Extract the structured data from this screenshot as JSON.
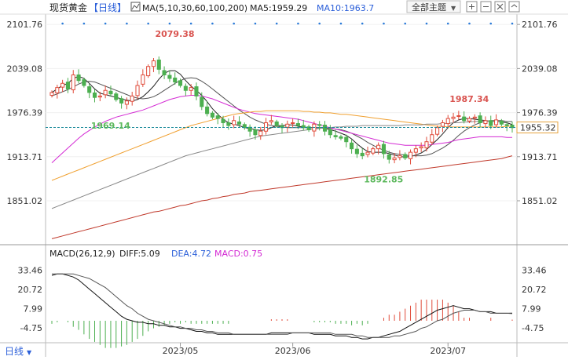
{
  "header": {
    "title": "现货黄金",
    "period": "【日线】",
    "ma_label": "MA(5,10,30,60,100,200)",
    "ma5_label": "MA5:1959.29",
    "ma10_label": "MA10:1963.7",
    "theme_button": "全部主题",
    "theme_button_arrow": "▼"
  },
  "macd_header": {
    "label": "MACD(26,12,9)",
    "diff": "DIFF:5.09",
    "dea": "DEA:4.72",
    "macd": "MACD:0.75"
  },
  "footer": {
    "period_tab": "日线"
  },
  "colors": {
    "up": "#e04b3a",
    "down": "#4caf50",
    "ma5": "#222222",
    "ma10": "#555555",
    "ma30": "#d42bd4",
    "ma60": "#f0a030",
    "ma100": "#888888",
    "ma200": "#c0392b",
    "accent_blue": "#2b5fd9",
    "price_line": "#1a8a9a",
    "label_red": "#d9534f",
    "label_green": "#5cb85c"
  },
  "chart_data": [
    {
      "type": "candlestick",
      "title": "现货黄金 日线",
      "y_ticks": [
        "2101.76",
        "2039.08",
        "1976.39",
        "1913.71",
        "1851.02"
      ],
      "ylim": [
        1793,
        2112
      ],
      "x_labels": [
        "2023/05",
        "2023/06",
        "2023/07"
      ],
      "last_price": "1955.32",
      "annotations": [
        {
          "text": "2079.38",
          "value": 2079.38,
          "kind": "high"
        },
        {
          "text": "1969.14",
          "value": 1969.14,
          "kind": "low"
        },
        {
          "text": "1892.85",
          "value": 1892.85,
          "kind": "low"
        },
        {
          "text": "1987.34",
          "value": 1987.34,
          "kind": "high"
        }
      ],
      "close": [
        2005,
        2012,
        2018,
        2010,
        2030,
        2022,
        2015,
        2005,
        1998,
        2000,
        2008,
        2003,
        1995,
        1990,
        1993,
        2000,
        2015,
        2030,
        2042,
        2050,
        2038,
        2030,
        2025,
        2020,
        2015,
        2008,
        2012,
        2000,
        1985,
        1975,
        1970,
        1968,
        1962,
        1958,
        1965,
        1960,
        1955,
        1950,
        1945,
        1950,
        1962,
        1965,
        1958,
        1955,
        1960,
        1962,
        1958,
        1955,
        1952,
        1960,
        1958,
        1950,
        1945,
        1942,
        1940,
        1935,
        1925,
        1918,
        1915,
        1920,
        1925,
        1930,
        1918,
        1910,
        1912,
        1915,
        1912,
        1920,
        1925,
        1928,
        1935,
        1945,
        1955,
        1962,
        1968,
        1970,
        1972,
        1965,
        1968,
        1970,
        1962,
        1965,
        1958,
        1966,
        1960,
        1958,
        1955
      ],
      "series": [
        {
          "name": "MA5",
          "values": [
            2005,
            2010,
            2015,
            2018,
            2025,
            2028,
            2025,
            2018,
            2010,
            2004,
            2002,
            2000,
            1998,
            1996,
            1994,
            1993,
            1995,
            1999,
            2006,
            2014,
            2024,
            2032,
            2036,
            2036,
            2031,
            2022,
            2014,
            2008,
            2001,
            1992,
            1982,
            1974,
            1967,
            1962,
            1960,
            1958,
            1955,
            1954,
            1952,
            1951,
            1952,
            1955,
            1958,
            1958,
            1959,
            1959,
            1957,
            1956,
            1955,
            1955,
            1955,
            1954,
            1952,
            1950,
            1947,
            1944,
            1939,
            1932,
            1926,
            1921,
            1920,
            1920,
            1920,
            1918,
            1916,
            1914,
            1913,
            1914,
            1916,
            1919,
            1924,
            1931,
            1938,
            1946,
            1955,
            1962,
            1966,
            1968,
            1968,
            1967,
            1966,
            1965,
            1964,
            1964,
            1963,
            1962,
            1959.29
          ]
        },
        {
          "name": "MA10",
          "values": [
            2000,
            2003,
            2006,
            2009,
            2013,
            2017,
            2020,
            2021,
            2020,
            2017,
            2014,
            2011,
            2008,
            2005,
            2002,
            1999,
            1997,
            1996,
            1997,
            1999,
            2003,
            2008,
            2013,
            2018,
            2022,
            2025,
            2026,
            2025,
            2021,
            2016,
            2010,
            2004,
            1998,
            1992,
            1986,
            1980,
            1975,
            1970,
            1966,
            1963,
            1960,
            1958,
            1957,
            1956,
            1955,
            1955,
            1955,
            1955,
            1955,
            1955,
            1955,
            1955,
            1954,
            1953,
            1952,
            1950,
            1947,
            1943,
            1939,
            1934,
            1930,
            1926,
            1923,
            1920,
            1918,
            1917,
            1916,
            1915,
            1915,
            1915,
            1916,
            1918,
            1922,
            1926,
            1931,
            1937,
            1944,
            1950,
            1955,
            1959,
            1962,
            1964,
            1965,
            1965,
            1965,
            1964,
            1963.7
          ]
        },
        {
          "name": "MA30",
          "values": [
            1905,
            1912,
            1919,
            1926,
            1933,
            1940,
            1946,
            1951,
            1956,
            1960,
            1964,
            1967,
            1970,
            1972,
            1974,
            1976,
            1978,
            1980,
            1983,
            1986,
            1989,
            1992,
            1995,
            1997,
            1999,
            2000,
            2001,
            2001,
            2000,
            1998,
            1996,
            1993,
            1990,
            1987,
            1984,
            1981,
            1979,
            1977,
            1975,
            1974,
            1973,
            1972,
            1971,
            1970,
            1969,
            1968,
            1967,
            1965,
            1963,
            1961,
            1959,
            1957,
            1955,
            1953,
            1951,
            1949,
            1947,
            1945,
            1943,
            1941,
            1939,
            1937,
            1935,
            1933,
            1932,
            1931,
            1930,
            1930,
            1930,
            1930,
            1930,
            1931,
            1932,
            1933,
            1934,
            1936,
            1938,
            1939,
            1940,
            1941,
            1942,
            1942,
            1942,
            1942,
            1942,
            1941,
            1941
          ]
        },
        {
          "name": "MA60",
          "values": [
            1880,
            1883,
            1886,
            1889,
            1892,
            1895,
            1898,
            1901,
            1904,
            1907,
            1910,
            1913,
            1916,
            1919,
            1922,
            1925,
            1928,
            1931,
            1934,
            1937,
            1940,
            1943,
            1946,
            1949,
            1952,
            1955,
            1958,
            1960,
            1962,
            1964,
            1966,
            1968,
            1970,
            1972,
            1974,
            1975,
            1976,
            1977,
            1978,
            1978,
            1979,
            1979,
            1979,
            1979,
            1979,
            1979,
            1979,
            1978,
            1978,
            1977,
            1977,
            1976,
            1976,
            1975,
            1974,
            1974,
            1973,
            1972,
            1971,
            1970,
            1969,
            1968,
            1967,
            1966,
            1965,
            1964,
            1963,
            1962,
            1961,
            1960,
            1959,
            1958,
            1957,
            1957,
            1956,
            1956,
            1956,
            1956,
            1956,
            1956,
            1956,
            1956,
            1956,
            1956,
            1956,
            1957,
            1957
          ]
        },
        {
          "name": "MA100",
          "values": [
            1840,
            1843,
            1846,
            1849,
            1852,
            1855,
            1858,
            1861,
            1864,
            1867,
            1870,
            1873,
            1876,
            1879,
            1882,
            1885,
            1888,
            1891,
            1894,
            1897,
            1900,
            1903,
            1906,
            1909,
            1912,
            1915,
            1917,
            1919,
            1921,
            1923,
            1925,
            1927,
            1929,
            1931,
            1933,
            1935,
            1937,
            1939,
            1941,
            1943,
            1944,
            1945,
            1946,
            1947,
            1948,
            1949,
            1950,
            1951,
            1952,
            1953,
            1954,
            1955,
            1955,
            1956,
            1956,
            1957,
            1957,
            1957,
            1958,
            1958,
            1958,
            1958,
            1958,
            1958,
            1958,
            1958,
            1959,
            1959,
            1959,
            1959,
            1960,
            1960,
            1960,
            1961,
            1961,
            1962,
            1962,
            1963,
            1963,
            1964,
            1964,
            1964,
            1964,
            1964,
            1964,
            1964,
            1964
          ]
        },
        {
          "name": "MA200",
          "values": [
            1797,
            1799,
            1801,
            1803,
            1805,
            1807,
            1809,
            1811,
            1813,
            1815,
            1817,
            1819,
            1821,
            1823,
            1825,
            1827,
            1829,
            1831,
            1833,
            1835,
            1836,
            1838,
            1840,
            1842,
            1844,
            1845,
            1847,
            1849,
            1851,
            1852,
            1854,
            1855,
            1857,
            1858,
            1860,
            1861,
            1862,
            1864,
            1865,
            1866,
            1867,
            1868,
            1869,
            1870,
            1871,
            1872,
            1873,
            1874,
            1875,
            1876,
            1877,
            1878,
            1879,
            1880,
            1881,
            1882,
            1883,
            1884,
            1885,
            1886,
            1887,
            1888,
            1889,
            1890,
            1891,
            1892,
            1893,
            1894,
            1895,
            1896,
            1897,
            1898,
            1899,
            1900,
            1901,
            1902,
            1903,
            1904,
            1905,
            1906,
            1907,
            1908,
            1909,
            1910,
            1911,
            1913,
            1915
          ]
        }
      ]
    },
    {
      "type": "macd",
      "title": "MACD(26,12,9)",
      "y_ticks": [
        "33.46",
        "20.72",
        "7.99",
        "-4.75"
      ],
      "ylim": [
        -13,
        40
      ],
      "x_labels": [
        "2023/05",
        "2023/06",
        "2023/07"
      ],
      "diff_value": "5.09",
      "dea_value": "4.72",
      "macd_value": "0.75",
      "series": [
        {
          "name": "DIFF",
          "values": [
            30,
            31,
            31,
            30,
            29,
            27,
            24,
            21,
            18,
            15,
            12,
            9,
            6,
            3,
            1,
            0,
            -1,
            -1,
            -2,
            -2,
            -3,
            -3,
            -4,
            -4,
            -5,
            -5,
            -6,
            -7,
            -7,
            -8,
            -8,
            -9,
            -9,
            -9,
            -9,
            -9,
            -9,
            -9,
            -9,
            -9,
            -9,
            -8,
            -8,
            -8,
            -8,
            -8,
            -8,
            -8,
            -8,
            -9,
            -9,
            -9,
            -9,
            -10,
            -10,
            -10,
            -11,
            -11,
            -12,
            -12,
            -11,
            -11,
            -10,
            -9,
            -8,
            -7,
            -5,
            -3,
            -1,
            1,
            3,
            5,
            7,
            8,
            9,
            10,
            9,
            8,
            8,
            7,
            6,
            6,
            6,
            5,
            5,
            5,
            5.09
          ]
        },
        {
          "name": "DEA",
          "values": [
            31,
            31,
            31,
            31,
            31,
            30,
            29,
            28,
            26,
            24,
            22,
            19,
            16,
            13,
            10,
            8,
            5,
            3,
            1,
            0,
            -1,
            -2,
            -3,
            -4,
            -4,
            -5,
            -5,
            -6,
            -6,
            -7,
            -7,
            -8,
            -8,
            -8,
            -9,
            -9,
            -9,
            -9,
            -9,
            -9,
            -9,
            -9,
            -9,
            -9,
            -9,
            -8,
            -8,
            -8,
            -8,
            -8,
            -8,
            -8,
            -8,
            -9,
            -9,
            -9,
            -9,
            -10,
            -10,
            -11,
            -11,
            -11,
            -11,
            -11,
            -10,
            -10,
            -9,
            -8,
            -7,
            -5,
            -4,
            -2,
            0,
            1,
            3,
            5,
            6,
            7,
            7,
            7,
            6,
            6,
            5,
            5,
            5,
            5,
            4.72
          ]
        },
        {
          "name": "MACD",
          "values": [
            -2,
            -1,
            0,
            -1,
            -4,
            -6,
            -9,
            -12,
            -14,
            -16,
            -18,
            -18,
            -18,
            -17,
            -16,
            -14,
            -12,
            -10,
            -7,
            -5,
            -4,
            -3,
            -2,
            -1,
            -2,
            -1,
            -2,
            -2,
            -2,
            -2,
            -2,
            -2,
            -2,
            -2,
            0,
            0,
            0,
            0,
            0,
            0,
            0,
            1,
            1,
            1,
            1,
            0,
            0,
            0,
            0,
            -1,
            -1,
            -1,
            -1,
            -2,
            -2,
            -2,
            -3,
            -2,
            -3,
            -2,
            0,
            0,
            2,
            4,
            4,
            6,
            8,
            10,
            12,
            14,
            14,
            14,
            14,
            14,
            12,
            10,
            6,
            2,
            2,
            0,
            0,
            0,
            2,
            0,
            0,
            0,
            0.75
          ]
        }
      ]
    }
  ]
}
